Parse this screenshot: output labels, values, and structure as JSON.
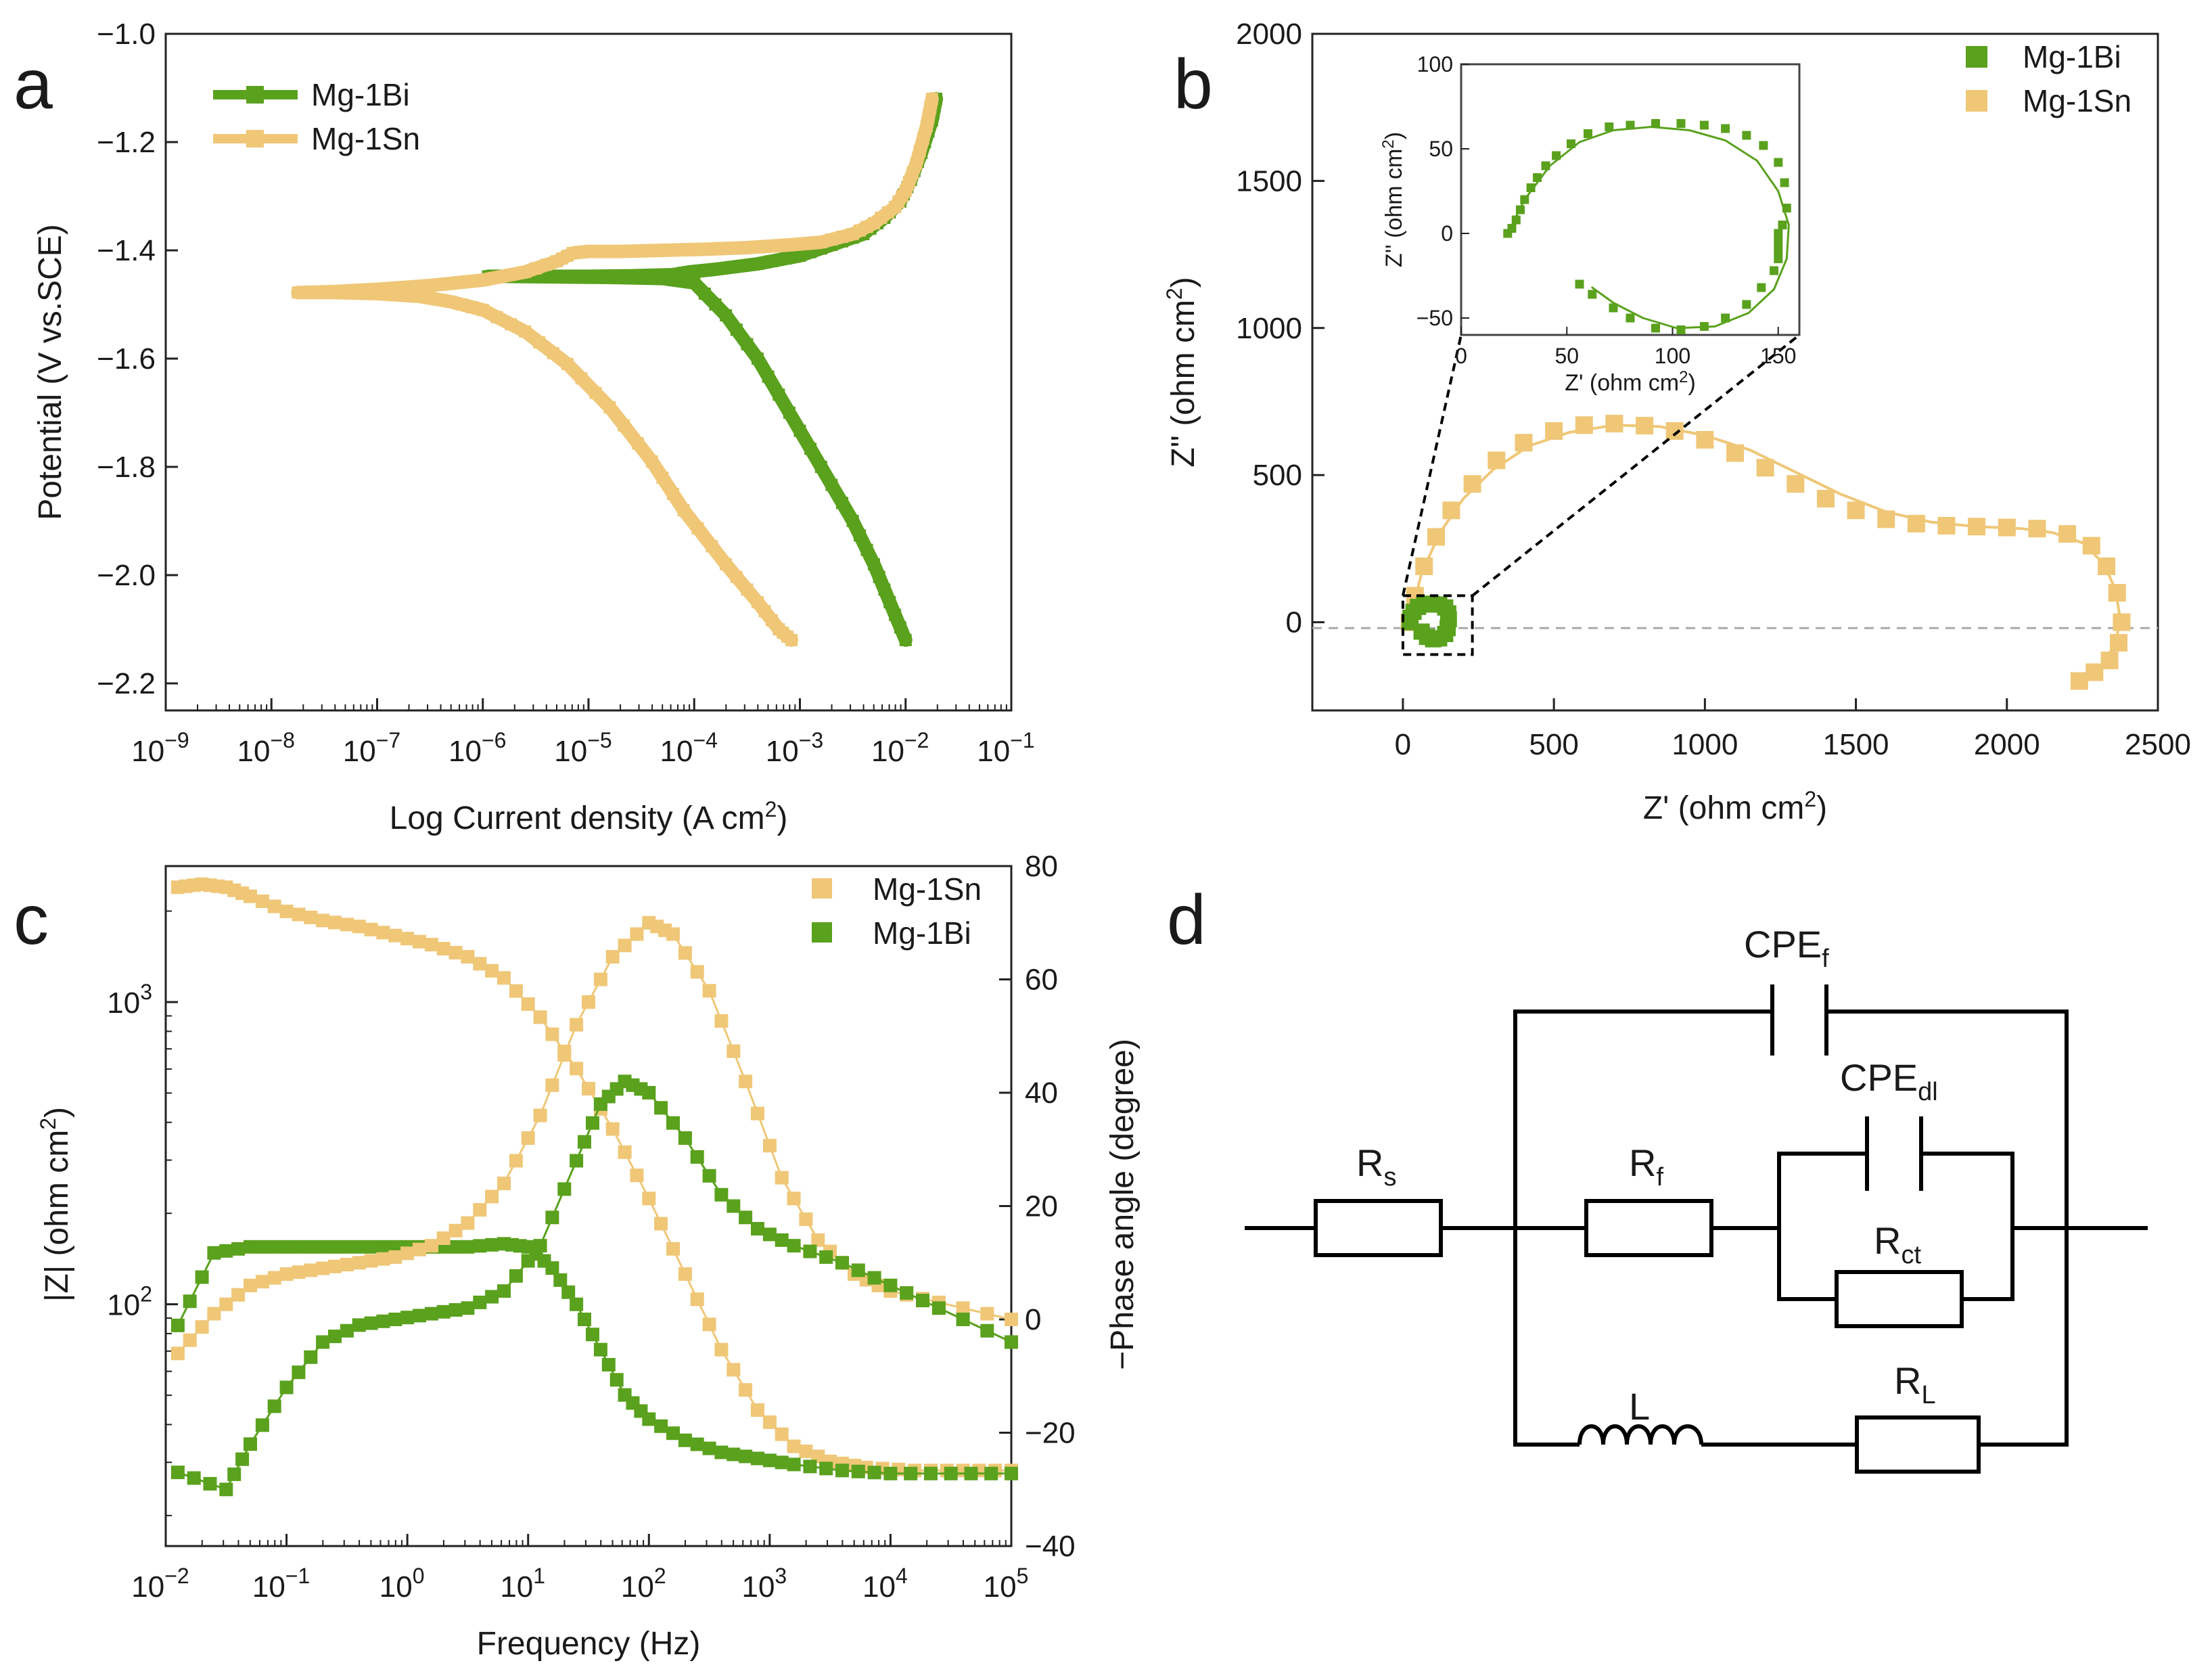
{
  "colors": {
    "bi": "#5aa11d",
    "sn": "#efc777",
    "axis": "#222222",
    "wire": "#000000",
    "guide": "#aaaaaa"
  },
  "panels": {
    "a": "a",
    "b": "b",
    "c": "c",
    "d": "d"
  },
  "chart_data": [
    {
      "panel": "a",
      "type": "line",
      "title": "",
      "xlabel": "Log Current density (A cm",
      "xlabel_sup": "2",
      "xlabel_end": ")",
      "ylabel": "Potential (V vs.SCE)",
      "xscale": "log",
      "xlim_exp": [
        -9,
        -1
      ],
      "ylim": [
        -2.25,
        -1.0
      ],
      "x_tick_base": "10",
      "x_tick_exps": [
        "-9",
        "-8",
        "-7",
        "-6",
        "-5",
        "-4",
        "-3",
        "-2",
        "-1"
      ],
      "y_ticks": [
        -2.2,
        -2.0,
        -1.8,
        -1.6,
        -1.4,
        -1.2,
        -1.0
      ],
      "y_tick_labels": [
        "−2.2",
        "−2.0",
        "−1.8",
        "−1.6",
        "−1.4",
        "−1.2",
        "−1.0"
      ],
      "legend": [
        "Mg-1Bi",
        "Mg-1Sn"
      ],
      "series": [
        {
          "name": "Mg-1Bi",
          "x_log": [
            -1.71,
            -1.75,
            -1.85,
            -1.95,
            -2.05,
            -2.2,
            -2.4,
            -2.7,
            -3.0,
            -3.4,
            -3.8,
            -4.05,
            -4.2,
            -4.6,
            -5.0,
            -5.4,
            -5.8,
            -5.95,
            -5.8,
            -5.3,
            -4.8,
            -4.3,
            -4.0,
            -3.7,
            -3.4,
            -3.1,
            -2.8,
            -2.5,
            -2.3,
            -2.15,
            -2.0
          ],
          "y": [
            -1.12,
            -1.16,
            -1.22,
            -1.27,
            -1.31,
            -1.34,
            -1.37,
            -1.39,
            -1.41,
            -1.425,
            -1.435,
            -1.44,
            -1.445,
            -1.447,
            -1.448,
            -1.448,
            -1.448,
            -1.448,
            -1.448,
            -1.449,
            -1.45,
            -1.452,
            -1.46,
            -1.52,
            -1.6,
            -1.7,
            -1.8,
            -1.9,
            -1.98,
            -2.05,
            -2.12
          ]
        },
        {
          "name": "Mg-1Sn",
          "x_log": [
            -1.75,
            -1.8,
            -1.9,
            -2.0,
            -2.1,
            -2.3,
            -2.5,
            -2.8,
            -3.1,
            -3.5,
            -3.9,
            -4.3,
            -4.7,
            -5.0,
            -5.15,
            -5.3,
            -5.6,
            -6.0,
            -6.5,
            -7.0,
            -7.4,
            -7.75,
            -7.4,
            -7.0,
            -6.6,
            -6.3,
            -6.0,
            -5.6,
            -5.2,
            -4.8,
            -4.4,
            -4.1,
            -3.7,
            -3.4,
            -3.2,
            -3.08
          ],
          "y": [
            -1.12,
            -1.17,
            -1.24,
            -1.29,
            -1.32,
            -1.35,
            -1.37,
            -1.385,
            -1.39,
            -1.395,
            -1.398,
            -1.4,
            -1.402,
            -1.402,
            -1.405,
            -1.42,
            -1.44,
            -1.455,
            -1.465,
            -1.472,
            -1.476,
            -1.478,
            -1.478,
            -1.48,
            -1.485,
            -1.495,
            -1.51,
            -1.55,
            -1.61,
            -1.69,
            -1.79,
            -1.88,
            -1.98,
            -2.05,
            -2.1,
            -2.12
          ]
        }
      ]
    },
    {
      "panel": "b",
      "type": "scatter",
      "title": "",
      "xlabel": "Z' (ohm cm",
      "xlabel_sup": "2",
      "xlabel_end": ")",
      "ylabel": "Z'' (ohm cm",
      "ylabel_sup": "2",
      "ylabel_end": ")",
      "xlim": [
        -300,
        2500
      ],
      "ylim": [
        -300,
        2000
      ],
      "x_ticks": [
        0,
        500,
        1000,
        1500,
        2000,
        2500
      ],
      "y_ticks": [
        0,
        500,
        1000,
        1500,
        2000
      ],
      "legend": [
        "Mg-1Bi",
        "Mg-1Sn"
      ],
      "series": [
        {
          "name": "Mg-1Sn",
          "x": [
            22,
            40,
            70,
            110,
            160,
            230,
            310,
            400,
            500,
            600,
            700,
            800,
            900,
            1000,
            1100,
            1200,
            1300,
            1400,
            1500,
            1600,
            1700,
            1800,
            1900,
            2000,
            2100,
            2200,
            2280,
            2330,
            2365,
            2380,
            2370,
            2340,
            2290,
            2240
          ],
          "y": [
            0,
            90,
            190,
            290,
            380,
            470,
            550,
            610,
            650,
            670,
            675,
            668,
            650,
            620,
            575,
            525,
            470,
            420,
            380,
            350,
            335,
            328,
            325,
            322,
            318,
            300,
            260,
            190,
            100,
            0,
            -70,
            -130,
            -170,
            -200
          ],
          "fit_x": [
            22,
            60,
            120,
            200,
            300,
            420,
            550,
            700,
            850,
            1000,
            1150,
            1300,
            1450,
            1600,
            1750,
            1900,
            2050,
            2150,
            2250,
            2320,
            2360,
            2375,
            2360,
            2320,
            2250
          ],
          "fit_y": [
            0,
            160,
            300,
            420,
            520,
            600,
            645,
            670,
            665,
            635,
            585,
            510,
            435,
            375,
            340,
            325,
            318,
            305,
            270,
            200,
            110,
            10,
            -70,
            -140,
            -195
          ]
        },
        {
          "name": "Mg-1Bi",
          "x": [
            22,
            25,
            35,
            50,
            70,
            95,
            120,
            140,
            150,
            152,
            148,
            140,
            120,
            100,
            80,
            62
          ],
          "y": [
            0,
            15,
            35,
            52,
            60,
            63,
            60,
            50,
            30,
            10,
            -20,
            -40,
            -55,
            -58,
            -50,
            -32
          ]
        }
      ],
      "inset": {
        "xlim": [
          0,
          160
        ],
        "ylim": [
          -60,
          100
        ],
        "x_ticks": [
          0,
          50,
          100,
          150
        ],
        "y_ticks": [
          -50,
          0,
          50,
          100
        ],
        "xlabel": "Z' (ohm cm",
        "xlabel_sup": "2",
        "xlabel_end": ")",
        "ylabel": "Z'' (ohm cm",
        "ylabel_sup": "2",
        "ylabel_end": ")",
        "bi_x": [
          22,
          24,
          26,
          28,
          30,
          33,
          36,
          40,
          45,
          52,
          60,
          70,
          80,
          92,
          104,
          115,
          125,
          135,
          143,
          150,
          153,
          154,
          152,
          150,
          150,
          150,
          150,
          148,
          142,
          135,
          125,
          115,
          104,
          92,
          80,
          72,
          62,
          56
        ],
        "bi_y": [
          0,
          3,
          8,
          14,
          20,
          27,
          33,
          40,
          46,
          53,
          59,
          63,
          64,
          65,
          65,
          64,
          62,
          58,
          52,
          42,
          30,
          15,
          5,
          0,
          -5,
          -10,
          -15,
          -22,
          -32,
          -42,
          -50,
          -55,
          -57,
          -56,
          -50,
          -44,
          -36,
          -30
        ],
        "fit_x": [
          22,
          30,
          42,
          56,
          72,
          90,
          108,
          125,
          140,
          150,
          155,
          154,
          148,
          136,
          120,
          102,
          86,
          72,
          62
        ],
        "fit_y": [
          0,
          20,
          40,
          54,
          61,
          63,
          61,
          55,
          43,
          25,
          5,
          -15,
          -33,
          -47,
          -55,
          -56,
          -50,
          -41,
          -32
        ]
      }
    },
    {
      "panel": "c",
      "type": "scatter",
      "title": "",
      "xlabel": "Frequency (Hz)",
      "ylabel_left": "|Z| (ohm cm",
      "ylabel_left_sup": "2",
      "ylabel_left_end": ")",
      "ylabel_right": "−Phase angle (degree)",
      "xscale": "log",
      "xlim_exp": [
        -2,
        5
      ],
      "yleft_scale": "log",
      "yleft_lim_log": [
        1.2,
        3.45
      ],
      "yright_lim": [
        -40,
        80
      ],
      "x_tick_base": "10",
      "x_tick_exps": [
        "-2",
        "-1",
        "0",
        "1",
        "2",
        "3",
        "4",
        "5"
      ],
      "y_left_tick_exps": [
        "2",
        "3"
      ],
      "y_right_ticks": [
        -40,
        -20,
        0,
        20,
        40,
        60,
        80
      ],
      "y_right_tick_labels": [
        "−40",
        "−20",
        "0",
        "20",
        "40",
        "60",
        "80"
      ],
      "legend": [
        "Mg-1Sn",
        "Mg-1Bi"
      ],
      "series": [
        {
          "name": "Mg-1Sn |Z|",
          "x_log": [
            -1.9,
            -1.7,
            -1.5,
            -1.3,
            -1.0,
            -0.7,
            -0.4,
            -0.1,
            0.2,
            0.5,
            0.8,
            1.1,
            1.4,
            1.7,
            2.0,
            2.3,
            2.6,
            2.9,
            3.2,
            3.5,
            3.8,
            4.2,
            4.6,
            5.0
          ],
          "y_log": [
            3.38,
            3.39,
            3.38,
            3.35,
            3.3,
            3.27,
            3.25,
            3.22,
            3.19,
            3.15,
            3.08,
            2.95,
            2.78,
            2.58,
            2.35,
            2.1,
            1.85,
            1.65,
            1.53,
            1.48,
            1.46,
            1.45,
            1.45,
            1.45
          ]
        },
        {
          "name": "Mg-1Bi |Z|",
          "x_log": [
            -1.9,
            -1.6,
            -1.3,
            -1.0,
            -0.7,
            -0.4,
            -0.1,
            0.2,
            0.5,
            0.8,
            1.0,
            1.2,
            1.4,
            1.6,
            1.8,
            2.0,
            2.3,
            2.6,
            2.9,
            3.2,
            3.6,
            4.0,
            4.5,
            5.0
          ],
          "y_log": [
            1.93,
            2.17,
            2.19,
            2.19,
            2.19,
            2.19,
            2.19,
            2.19,
            2.19,
            2.2,
            2.19,
            2.12,
            2.0,
            1.85,
            1.7,
            1.62,
            1.55,
            1.51,
            1.49,
            1.47,
            1.45,
            1.44,
            1.44,
            1.44
          ]
        },
        {
          "name": "Mg-1Sn phase",
          "x_log": [
            -1.9,
            -1.6,
            -1.3,
            -1.0,
            -0.7,
            -0.4,
            -0.1,
            0.2,
            0.5,
            0.8,
            1.1,
            1.4,
            1.7,
            2.0,
            2.2,
            2.5,
            2.8,
            3.1,
            3.4,
            3.7,
            4.0,
            4.4,
            5.0
          ],
          "y": [
            -6,
            1,
            6,
            8,
            9,
            10,
            11,
            13,
            17,
            24,
            36,
            52,
            64,
            70,
            68,
            58,
            42,
            25,
            14,
            8,
            5,
            3,
            0
          ]
        },
        {
          "name": "Mg-1Bi phase",
          "x_log": [
            -1.9,
            -1.5,
            -1.3,
            -1.0,
            -0.7,
            -0.4,
            -0.1,
            0.2,
            0.5,
            0.8,
            1.1,
            1.4,
            1.6,
            1.8,
            2.0,
            2.3,
            2.6,
            2.9,
            3.2,
            3.6,
            4.0,
            4.4,
            5.0
          ],
          "y": [
            -27,
            -30,
            -22,
            -12,
            -4,
            -1,
            0,
            1,
            2,
            5,
            13,
            28,
            38,
            42,
            40,
            32,
            22,
            16,
            13,
            10,
            6,
            2,
            -4
          ]
        }
      ]
    }
  ],
  "circuit": {
    "components": {
      "rs": "R",
      "rs_sub": "s",
      "rf": "R",
      "rf_sub": "f",
      "rct": "R",
      "rct_sub": "ct",
      "rl": "R",
      "rl_sub": "L",
      "l": "L",
      "cpef": "CPE",
      "cpef_sub": "f",
      "cpedl": "CPE",
      "cpedl_sub": "dl"
    }
  }
}
